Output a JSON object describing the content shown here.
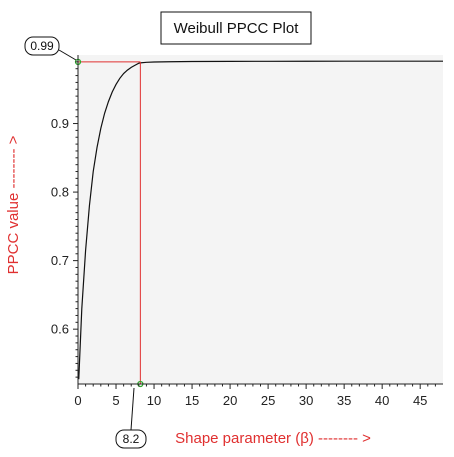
{
  "chart_data": {
    "type": "line",
    "title": "Weibull PPCC Plot",
    "xlabel": "Shape parameter (β) -------- >",
    "ylabel": "PPCC value -------- >",
    "xlim": [
      0,
      48
    ],
    "ylim": [
      0.52,
      1.0
    ],
    "xticks": [
      "0",
      "5",
      "10",
      "15",
      "20",
      "25",
      "30",
      "35",
      "40",
      "45"
    ],
    "yticks": [
      "0.6",
      "0.7",
      "0.8",
      "0.9"
    ],
    "grid": false,
    "series": [
      {
        "x": [
          0.1,
          0.5,
          1,
          1.5,
          2,
          2.5,
          3,
          3.5,
          4,
          4.5,
          5,
          5.5,
          6,
          6.5,
          7,
          7.5,
          8,
          8.2,
          9,
          10,
          12,
          15,
          20,
          25,
          30,
          35,
          40,
          45,
          48
        ],
        "y": [
          0.527,
          0.63,
          0.715,
          0.78,
          0.83,
          0.865,
          0.893,
          0.915,
          0.932,
          0.946,
          0.957,
          0.966,
          0.973,
          0.978,
          0.982,
          0.985,
          0.988,
          0.9885,
          0.9893,
          0.9898,
          0.9902,
          0.9905,
          0.9907,
          0.9908,
          0.9909,
          0.991,
          0.991,
          0.991,
          0.991
        ]
      }
    ],
    "optimum": {
      "x": 8.2,
      "y": 0.99,
      "x_label": "8.2",
      "y_label": "0.99"
    }
  },
  "colors": {
    "plot_background": "#f4f4f4",
    "curve": "#111111",
    "marker_line": "#e03030",
    "marker_point": "#2eaa2e",
    "axis_label": "#e03030",
    "axis": "#222222"
  }
}
